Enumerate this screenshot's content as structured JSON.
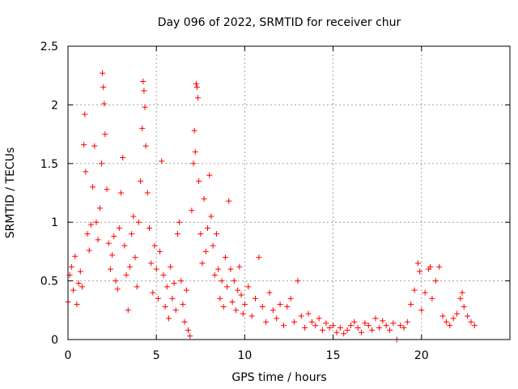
{
  "chart_data": {
    "type": "scatter",
    "title": "Day 096 of 2022, SRMTID for receiver chur",
    "xlabel": "GPS time / hours",
    "ylabel": "SRMTID / TECUs",
    "xlim": [
      0,
      25
    ],
    "ylim": [
      0,
      2.5
    ],
    "xticks": [
      0,
      5,
      10,
      15,
      20
    ],
    "yticks": [
      0,
      0.5,
      1,
      1.5,
      2,
      2.5
    ],
    "xtick_labels": [
      "0",
      "5",
      "10",
      "15",
      "20"
    ],
    "ytick_labels": [
      "0",
      "0.5",
      "1",
      "1.5",
      "2",
      "2.5"
    ],
    "grid": true,
    "marker": "+",
    "color": "#ff0000",
    "series": [
      {
        "name": "SRMTID",
        "points": [
          [
            0.0,
            0.32
          ],
          [
            0.1,
            0.55
          ],
          [
            0.2,
            0.62
          ],
          [
            0.3,
            0.42
          ],
          [
            0.4,
            0.71
          ],
          [
            0.5,
            0.3
          ],
          [
            0.6,
            0.48
          ],
          [
            0.7,
            0.58
          ],
          [
            0.8,
            0.45
          ],
          [
            0.9,
            1.66
          ],
          [
            0.95,
            1.92
          ],
          [
            1.0,
            1.43
          ],
          [
            1.1,
            0.9
          ],
          [
            1.2,
            0.76
          ],
          [
            1.3,
            0.98
          ],
          [
            1.4,
            1.3
          ],
          [
            1.5,
            1.65
          ],
          [
            1.6,
            1.0
          ],
          [
            1.7,
            0.85
          ],
          [
            1.8,
            1.12
          ],
          [
            1.9,
            1.5
          ],
          [
            1.95,
            2.27
          ],
          [
            2.0,
            2.15
          ],
          [
            2.05,
            2.01
          ],
          [
            2.1,
            1.75
          ],
          [
            2.2,
            1.28
          ],
          [
            2.3,
            0.82
          ],
          [
            2.4,
            0.6
          ],
          [
            2.5,
            0.72
          ],
          [
            2.6,
            0.88
          ],
          [
            2.7,
            0.5
          ],
          [
            2.8,
            0.43
          ],
          [
            2.9,
            0.95
          ],
          [
            3.0,
            1.25
          ],
          [
            3.1,
            1.55
          ],
          [
            3.2,
            0.8
          ],
          [
            3.3,
            0.55
          ],
          [
            3.4,
            0.25
          ],
          [
            3.5,
            0.62
          ],
          [
            3.6,
            0.9
          ],
          [
            3.7,
            1.05
          ],
          [
            3.8,
            0.7
          ],
          [
            3.9,
            0.45
          ],
          [
            4.0,
            1.0
          ],
          [
            4.1,
            1.35
          ],
          [
            4.2,
            1.8
          ],
          [
            4.25,
            2.2
          ],
          [
            4.3,
            2.12
          ],
          [
            4.35,
            1.98
          ],
          [
            4.4,
            1.65
          ],
          [
            4.5,
            1.25
          ],
          [
            4.6,
            0.95
          ],
          [
            4.7,
            0.65
          ],
          [
            4.8,
            0.4
          ],
          [
            4.9,
            0.8
          ],
          [
            5.0,
            0.6
          ],
          [
            5.1,
            0.35
          ],
          [
            5.2,
            0.75
          ],
          [
            5.3,
            1.52
          ],
          [
            5.4,
            0.55
          ],
          [
            5.5,
            0.28
          ],
          [
            5.6,
            0.45
          ],
          [
            5.7,
            0.18
          ],
          [
            5.8,
            0.62
          ],
          [
            5.9,
            0.35
          ],
          [
            6.0,
            0.48
          ],
          [
            6.1,
            0.25
          ],
          [
            6.2,
            0.9
          ],
          [
            6.3,
            1.0
          ],
          [
            6.4,
            0.5
          ],
          [
            6.5,
            0.3
          ],
          [
            6.6,
            0.15
          ],
          [
            6.7,
            0.42
          ],
          [
            6.8,
            0.08
          ],
          [
            6.9,
            0.03
          ],
          [
            7.0,
            1.1
          ],
          [
            7.1,
            1.5
          ],
          [
            7.15,
            1.78
          ],
          [
            7.2,
            1.6
          ],
          [
            7.25,
            2.18
          ],
          [
            7.3,
            2.15
          ],
          [
            7.35,
            2.06
          ],
          [
            7.4,
            1.35
          ],
          [
            7.5,
            0.9
          ],
          [
            7.6,
            0.65
          ],
          [
            7.7,
            1.2
          ],
          [
            7.8,
            0.75
          ],
          [
            7.9,
            0.95
          ],
          [
            8.0,
            1.4
          ],
          [
            8.1,
            1.05
          ],
          [
            8.2,
            0.8
          ],
          [
            8.3,
            0.55
          ],
          [
            8.4,
            0.9
          ],
          [
            8.5,
            0.6
          ],
          [
            8.6,
            0.35
          ],
          [
            8.7,
            0.5
          ],
          [
            8.8,
            0.28
          ],
          [
            8.9,
            0.7
          ],
          [
            9.0,
            0.45
          ],
          [
            9.1,
            1.18
          ],
          [
            9.2,
            0.6
          ],
          [
            9.3,
            0.32
          ],
          [
            9.4,
            0.5
          ],
          [
            9.5,
            0.25
          ],
          [
            9.6,
            0.42
          ],
          [
            9.7,
            0.62
          ],
          [
            9.8,
            0.38
          ],
          [
            9.9,
            0.22
          ],
          [
            10.0,
            0.3
          ],
          [
            10.2,
            0.45
          ],
          [
            10.4,
            0.2
          ],
          [
            10.6,
            0.35
          ],
          [
            10.8,
            0.7
          ],
          [
            11.0,
            0.28
          ],
          [
            11.2,
            0.15
          ],
          [
            11.4,
            0.4
          ],
          [
            11.6,
            0.25
          ],
          [
            11.8,
            0.18
          ],
          [
            12.0,
            0.3
          ],
          [
            12.2,
            0.12
          ],
          [
            12.4,
            0.28
          ],
          [
            12.6,
            0.35
          ],
          [
            12.8,
            0.15
          ],
          [
            13.0,
            0.5
          ],
          [
            13.2,
            0.2
          ],
          [
            13.4,
            0.1
          ],
          [
            13.6,
            0.22
          ],
          [
            13.8,
            0.15
          ],
          [
            14.0,
            0.12
          ],
          [
            14.2,
            0.18
          ],
          [
            14.4,
            0.08
          ],
          [
            14.6,
            0.14
          ],
          [
            14.8,
            0.1
          ],
          [
            15.0,
            0.12
          ],
          [
            15.2,
            0.06
          ],
          [
            15.4,
            0.1
          ],
          [
            15.6,
            0.05
          ],
          [
            15.8,
            0.08
          ],
          [
            16.0,
            0.12
          ],
          [
            16.2,
            0.15
          ],
          [
            16.4,
            0.1
          ],
          [
            16.6,
            0.06
          ],
          [
            16.8,
            0.14
          ],
          [
            17.0,
            0.12
          ],
          [
            17.2,
            0.08
          ],
          [
            17.4,
            0.18
          ],
          [
            17.6,
            0.1
          ],
          [
            17.8,
            0.16
          ],
          [
            18.0,
            0.12
          ],
          [
            18.2,
            0.08
          ],
          [
            18.4,
            0.14
          ],
          [
            18.6,
            0.0
          ],
          [
            18.8,
            0.12
          ],
          [
            19.0,
            0.1
          ],
          [
            19.2,
            0.15
          ],
          [
            19.4,
            0.3
          ],
          [
            19.6,
            0.42
          ],
          [
            19.8,
            0.65
          ],
          [
            19.9,
            0.58
          ],
          [
            20.0,
            0.25
          ],
          [
            20.2,
            0.4
          ],
          [
            20.4,
            0.6
          ],
          [
            20.5,
            0.62
          ],
          [
            20.6,
            0.35
          ],
          [
            20.8,
            0.5
          ],
          [
            21.0,
            0.62
          ],
          [
            21.2,
            0.2
          ],
          [
            21.4,
            0.15
          ],
          [
            21.6,
            0.12
          ],
          [
            21.8,
            0.18
          ],
          [
            22.0,
            0.22
          ],
          [
            22.2,
            0.35
          ],
          [
            22.3,
            0.4
          ],
          [
            22.4,
            0.28
          ],
          [
            22.6,
            0.2
          ],
          [
            22.8,
            0.15
          ],
          [
            23.0,
            0.12
          ]
        ]
      }
    ]
  }
}
